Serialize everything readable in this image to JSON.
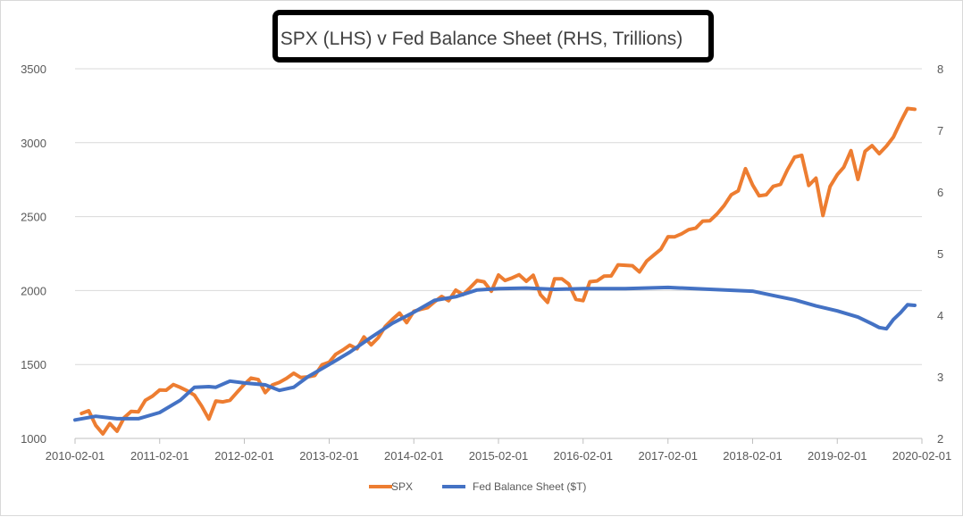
{
  "chart_data": {
    "type": "line",
    "title": "SPX (LHS) v Fed Balance Sheet (RHS, Trillions)",
    "xlabel": "",
    "ylabel": "",
    "y2label": "",
    "x_ticks": [
      "2010-02-01",
      "2011-02-01",
      "2012-02-01",
      "2013-02-01",
      "2014-02-01",
      "2015-02-01",
      "2016-02-01",
      "2017-02-01",
      "2018-02-01",
      "2019-02-01",
      "2020-02-01"
    ],
    "ylim": [
      1000,
      3500
    ],
    "y_ticks": [
      1000,
      1500,
      2000,
      2500,
      3000,
      3500
    ],
    "y2lim": [
      2,
      8
    ],
    "y2_ticks": [
      2,
      3,
      4,
      5,
      6,
      7,
      8
    ],
    "grid": true,
    "legend_position": "bottom",
    "series": [
      {
        "name": "SPX",
        "axis": "left",
        "color": "#ed7d31",
        "x": [
          "2010-03-01",
          "2010-04-01",
          "2010-05-01",
          "2010-06-01",
          "2010-07-01",
          "2010-08-01",
          "2010-09-01",
          "2010-10-01",
          "2010-11-01",
          "2010-12-01",
          "2011-01-01",
          "2011-02-01",
          "2011-03-01",
          "2011-04-01",
          "2011-05-01",
          "2011-06-01",
          "2011-07-01",
          "2011-08-01",
          "2011-09-01",
          "2011-10-01",
          "2011-11-01",
          "2011-12-01",
          "2012-01-01",
          "2012-02-01",
          "2012-03-01",
          "2012-04-01",
          "2012-05-01",
          "2012-06-01",
          "2012-07-01",
          "2012-08-01",
          "2012-09-01",
          "2012-10-01",
          "2012-11-01",
          "2012-12-01",
          "2013-01-01",
          "2013-02-01",
          "2013-03-01",
          "2013-04-01",
          "2013-05-01",
          "2013-06-01",
          "2013-07-01",
          "2013-08-01",
          "2013-09-01",
          "2013-10-01",
          "2013-11-01",
          "2013-12-01",
          "2014-01-01",
          "2014-02-01",
          "2014-03-01",
          "2014-04-01",
          "2014-05-01",
          "2014-06-01",
          "2014-07-01",
          "2014-08-01",
          "2014-09-01",
          "2014-10-01",
          "2014-11-01",
          "2014-12-01",
          "2015-01-01",
          "2015-02-01",
          "2015-03-01",
          "2015-04-01",
          "2015-05-01",
          "2015-06-01",
          "2015-07-01",
          "2015-08-01",
          "2015-09-01",
          "2015-10-01",
          "2015-11-01",
          "2015-12-01",
          "2016-01-01",
          "2016-02-01",
          "2016-03-01",
          "2016-04-01",
          "2016-05-01",
          "2016-06-01",
          "2016-07-01",
          "2016-08-01",
          "2016-09-01",
          "2016-10-01",
          "2016-11-01",
          "2016-12-01",
          "2017-01-01",
          "2017-02-01",
          "2017-03-01",
          "2017-04-01",
          "2017-05-01",
          "2017-06-01",
          "2017-07-01",
          "2017-08-01",
          "2017-09-01",
          "2017-10-01",
          "2017-11-01",
          "2017-12-01",
          "2018-01-01",
          "2018-02-01",
          "2018-03-01",
          "2018-04-01",
          "2018-05-01",
          "2018-06-01",
          "2018-07-01",
          "2018-08-01",
          "2018-09-01",
          "2018-10-01",
          "2018-11-01",
          "2018-12-01",
          "2019-01-01",
          "2019-02-01",
          "2019-03-01",
          "2019-04-01",
          "2019-05-01",
          "2019-06-01",
          "2019-07-01",
          "2019-08-01",
          "2019-09-01",
          "2019-10-01",
          "2019-11-01",
          "2019-12-01",
          "2020-01-01"
        ],
        "values": [
          1169,
          1187,
          1089,
          1031,
          1101,
          1049,
          1141,
          1183,
          1180,
          1258,
          1286,
          1327,
          1326,
          1364,
          1345,
          1321,
          1292,
          1219,
          1131,
          1253,
          1247,
          1258,
          1312,
          1366,
          1408,
          1398,
          1310,
          1362,
          1379,
          1406,
          1441,
          1412,
          1416,
          1426,
          1498,
          1515,
          1569,
          1598,
          1631,
          1606,
          1686,
          1633,
          1682,
          1757,
          1806,
          1848,
          1783,
          1860,
          1872,
          1884,
          1924,
          1960,
          1931,
          2003,
          1972,
          2018,
          2068,
          2059,
          1995,
          2105,
          2068,
          2086,
          2107,
          2063,
          2104,
          1972,
          1920,
          2079,
          2080,
          2044,
          1940,
          1932,
          2060,
          2065,
          2097,
          2099,
          2174,
          2171,
          2168,
          2126,
          2199,
          2239,
          2279,
          2364,
          2363,
          2384,
          2412,
          2423,
          2470,
          2472,
          2519,
          2575,
          2648,
          2674,
          2824,
          2714,
          2641,
          2648,
          2705,
          2718,
          2816,
          2902,
          2914,
          2711,
          2760,
          2507,
          2704,
          2784,
          2834,
          2946,
          2752,
          2942,
          2980,
          2926,
          2977,
          3038,
          3141,
          3231,
          3226
        ]
      },
      {
        "name": "Fed Balance Sheet ($T)",
        "axis": "right",
        "color": "#4472c4",
        "x": [
          "2010-02-01",
          "2010-05-01",
          "2010-08-01",
          "2010-11-01",
          "2011-02-01",
          "2011-05-01",
          "2011-07-01",
          "2011-09-01",
          "2011-10-01",
          "2011-12-01",
          "2012-02-01",
          "2012-05-01",
          "2012-07-01",
          "2012-09-01",
          "2012-11-01",
          "2013-02-01",
          "2013-05-01",
          "2013-08-01",
          "2013-11-01",
          "2014-02-01",
          "2014-05-01",
          "2014-08-01",
          "2014-11-01",
          "2015-02-01",
          "2015-06-01",
          "2015-10-01",
          "2016-02-01",
          "2016-08-01",
          "2017-02-01",
          "2017-08-01",
          "2018-02-01",
          "2018-05-01",
          "2018-08-01",
          "2018-11-01",
          "2019-02-01",
          "2019-05-01",
          "2019-07-01",
          "2019-08-01",
          "2019-09-01",
          "2019-10-01",
          "2019-11-01",
          "2019-12-01",
          "2020-01-01"
        ],
        "values": [
          2.3,
          2.36,
          2.32,
          2.32,
          2.42,
          2.62,
          2.83,
          2.84,
          2.83,
          2.93,
          2.9,
          2.87,
          2.78,
          2.83,
          3.0,
          3.2,
          3.4,
          3.64,
          3.87,
          4.05,
          4.24,
          4.3,
          4.41,
          4.43,
          4.44,
          4.42,
          4.43,
          4.43,
          4.45,
          4.42,
          4.39,
          4.32,
          4.25,
          4.15,
          4.07,
          3.97,
          3.86,
          3.8,
          3.78,
          3.93,
          4.04,
          4.17,
          4.16
        ]
      }
    ]
  }
}
